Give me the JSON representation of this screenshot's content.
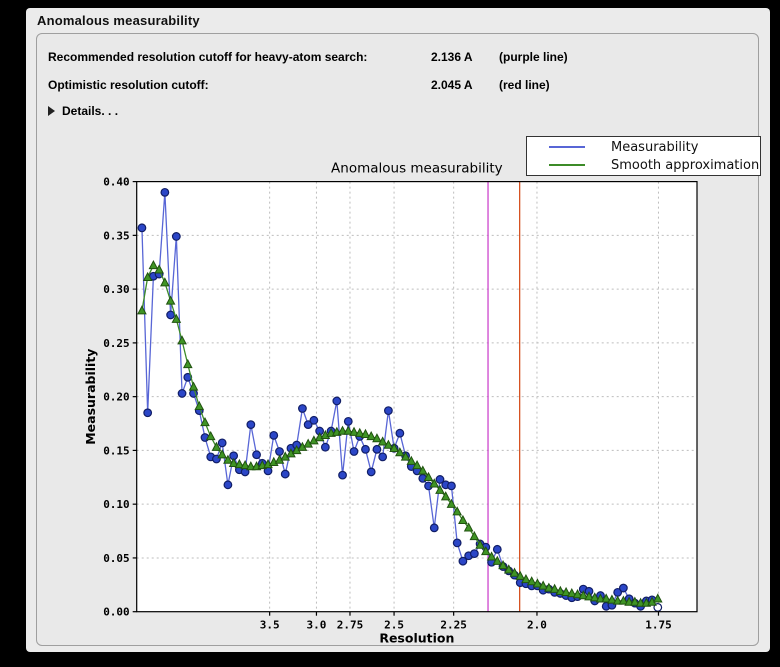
{
  "header": {
    "title": "Anomalous measurability"
  },
  "info_rows": [
    {
      "label": "Recommended resolution cutoff for heavy-atom search:",
      "value": "2.136 A",
      "note": "(purple line)"
    },
    {
      "label": "Optimistic resolution cutoff:",
      "value": "2.045 A",
      "note": "(red line)"
    }
  ],
  "details": {
    "label": "Details. . .",
    "icon": "disclosure-triangle-icon"
  },
  "colors": {
    "window_bg": "#ebebeb",
    "panel_bg": "#e9e9e9",
    "plot_bg": "#ffffff",
    "grid": "#bdbdbd",
    "frame": "#000000"
  },
  "chart_data": {
    "type": "line",
    "title": "Anomalous measurability",
    "xlabel": "Resolution",
    "ylabel": "Measurability",
    "ylim": [
      0.0,
      0.4
    ],
    "y_ticks": [
      0.0,
      0.05,
      0.1,
      0.15,
      0.2,
      0.25,
      0.3,
      0.35,
      0.4
    ],
    "x_scale": "linear_in_1_over_d_squared",
    "x_ticks_d": [
      3.5,
      3.0,
      2.75,
      2.5,
      2.25,
      2.0,
      1.75
    ],
    "x_tick_labels": [
      "3.5",
      "3.0",
      "2.75",
      "2.5",
      "2.25",
      "2.0",
      "1.75"
    ],
    "xlim_u": [
      -0.0021,
      0.3508
    ],
    "u_start": 0.0012,
    "u_step": 0.00361,
    "grid": true,
    "legend_position": "upper-right-outside",
    "cutoff_lines": [
      {
        "name": "recommended-cutoff",
        "d": 2.136,
        "color": "#c837c8",
        "label": "purple line"
      },
      {
        "name": "optimistic-cutoff",
        "d": 2.045,
        "color": "#d2430f",
        "label": "red line"
      }
    ],
    "series": [
      {
        "name": "Measurability",
        "marker": "circle",
        "line_color": "#5866d6",
        "marker_fill": "#2b46c7",
        "marker_edge": "#111e66",
        "last_point_open": true,
        "values": [
          0.357,
          0.185,
          0.312,
          0.314,
          0.39,
          0.276,
          0.349,
          0.203,
          0.218,
          0.203,
          0.187,
          0.162,
          0.144,
          0.142,
          0.157,
          0.118,
          0.145,
          0.132,
          0.13,
          0.174,
          0.146,
          0.138,
          0.131,
          0.164,
          0.149,
          0.128,
          0.152,
          0.155,
          0.189,
          0.174,
          0.178,
          0.168,
          0.153,
          0.168,
          0.196,
          0.127,
          0.177,
          0.149,
          0.163,
          0.151,
          0.13,
          0.151,
          0.144,
          0.187,
          0.152,
          0.166,
          0.145,
          0.135,
          0.131,
          0.124,
          0.117,
          0.078,
          0.123,
          0.118,
          0.117,
          0.064,
          0.047,
          0.052,
          0.054,
          0.063,
          0.06,
          0.046,
          0.058,
          0.042,
          0.038,
          0.034,
          0.027,
          0.026,
          0.024,
          0.024,
          0.02,
          0.021,
          0.018,
          0.017,
          0.015,
          0.013,
          0.014,
          0.021,
          0.019,
          0.01,
          0.015,
          0.005,
          0.006,
          0.018,
          0.022,
          0.012,
          0.008,
          0.005,
          0.01,
          0.011,
          0.004
        ]
      },
      {
        "name": "Smooth approximation",
        "marker": "triangle",
        "line_color": "#3c8b28",
        "marker_fill": "#3f9425",
        "marker_edge": "#205210",
        "last_point_open": false,
        "values": [
          0.28,
          0.311,
          0.322,
          0.318,
          0.306,
          0.289,
          0.272,
          0.252,
          0.23,
          0.209,
          0.191,
          0.176,
          0.163,
          0.153,
          0.146,
          0.141,
          0.138,
          0.137,
          0.136,
          0.135,
          0.135,
          0.136,
          0.137,
          0.139,
          0.141,
          0.144,
          0.147,
          0.15,
          0.153,
          0.156,
          0.159,
          0.162,
          0.164,
          0.166,
          0.167,
          0.168,
          0.168,
          0.167,
          0.166,
          0.165,
          0.163,
          0.161,
          0.158,
          0.155,
          0.152,
          0.148,
          0.144,
          0.14,
          0.136,
          0.131,
          0.125,
          0.119,
          0.113,
          0.107,
          0.1,
          0.093,
          0.085,
          0.078,
          0.07,
          0.062,
          0.056,
          0.051,
          0.047,
          0.043,
          0.039,
          0.036,
          0.033,
          0.03,
          0.028,
          0.026,
          0.024,
          0.022,
          0.021,
          0.019,
          0.018,
          0.017,
          0.016,
          0.015,
          0.014,
          0.013,
          0.012,
          0.012,
          0.011,
          0.01,
          0.01,
          0.009,
          0.009,
          0.008,
          0.008,
          0.009,
          0.012
        ]
      }
    ]
  }
}
